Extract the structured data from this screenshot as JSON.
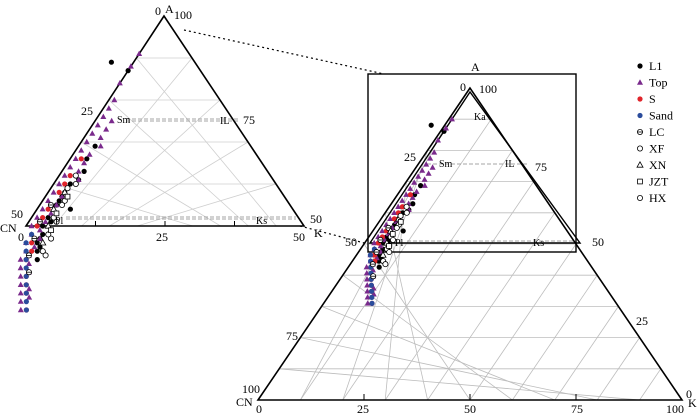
{
  "chart_data": {
    "type": "scatter",
    "title": "",
    "vertex_labels": {
      "apex": "A",
      "left": "CN",
      "right": "K"
    },
    "mineral_labels": {
      "sm": "Sm",
      "il": "IL",
      "pl": "Pl",
      "ks": "Ks",
      "ka": "Ka"
    },
    "full_diagram": {
      "left_ticks": [
        "100",
        "75",
        "50",
        "25",
        "0"
      ],
      "bottom_ticks": [
        "0",
        "25",
        "50",
        "75",
        "100"
      ],
      "right_ticks": [
        "0",
        "25",
        "50"
      ],
      "inset_ticks": {
        "apex_left": "0",
        "apex_right": "100",
        "left_25": "25",
        "right_75": "75",
        "left_50": "50",
        "right_50": "50"
      }
    },
    "enlarged_diagram": {
      "apex_left": "0",
      "apex_right": "100",
      "left_25": "25",
      "right_75": "75",
      "left_50": "50",
      "right_50": "50",
      "bottom_ticks": [
        "0",
        "25",
        "50"
      ]
    },
    "legend": [
      {
        "name": "L1",
        "marker": "circle-filled",
        "color": "#000000"
      },
      {
        "name": "Top",
        "marker": "triangle-filled",
        "color": "#7a2a8c"
      },
      {
        "name": "S",
        "marker": "circle-filled",
        "color": "#e0242a"
      },
      {
        "name": "Sand",
        "marker": "circle-filled",
        "color": "#2b4c9c"
      },
      {
        "name": "LC",
        "marker": "circle-crossed",
        "color": "#000000"
      },
      {
        "name": "XF",
        "marker": "circle-open",
        "color": "#000000"
      },
      {
        "name": "XN",
        "marker": "triangle-open",
        "color": "#000000"
      },
      {
        "name": "JZT",
        "marker": "square-open",
        "color": "#000000"
      },
      {
        "name": "HX",
        "marker": "circle-open",
        "color": "#000000"
      }
    ],
    "series": [
      {
        "name": "L1",
        "points": [
          [
            87,
            13
          ],
          [
            89,
            15
          ],
          [
            69,
            28
          ],
          [
            66,
            31
          ],
          [
            63,
            33
          ],
          [
            61,
            35
          ],
          [
            57,
            40
          ],
          [
            55,
            42
          ],
          [
            54,
            40
          ],
          [
            52,
            45
          ],
          [
            50,
            47
          ],
          [
            48,
            48
          ],
          [
            46,
            50
          ],
          [
            44,
            51
          ],
          [
            42,
            52
          ],
          [
            60,
            37
          ],
          [
            56,
            41
          ],
          [
            51,
            45
          ],
          [
            47,
            49
          ],
          [
            45,
            50
          ],
          [
            58,
            39
          ],
          [
            53,
            43
          ]
        ]
      },
      {
        "name": "Top",
        "points": [
          [
            91,
            9
          ],
          [
            88,
            12
          ],
          [
            84,
            16
          ],
          [
            80,
            19
          ],
          [
            78,
            21
          ],
          [
            76,
            23
          ],
          [
            74,
            25
          ],
          [
            72,
            27
          ],
          [
            70,
            29
          ],
          [
            68,
            31
          ],
          [
            66,
            33
          ],
          [
            64,
            35
          ],
          [
            62,
            37
          ],
          [
            60,
            39
          ],
          [
            58,
            41
          ],
          [
            56,
            43
          ],
          [
            54,
            45
          ],
          [
            52,
            47
          ],
          [
            50,
            49
          ],
          [
            48,
            50
          ],
          [
            46,
            52
          ],
          [
            44,
            53
          ],
          [
            42,
            55
          ],
          [
            40,
            56
          ],
          [
            38,
            57
          ],
          [
            36,
            58
          ],
          [
            34,
            59
          ],
          [
            32,
            60
          ],
          [
            30,
            61
          ],
          [
            75,
            22
          ],
          [
            71,
            26
          ],
          [
            67,
            30
          ],
          [
            63,
            34
          ],
          [
            59,
            38
          ],
          [
            55,
            42
          ],
          [
            51,
            46
          ],
          [
            47,
            49
          ],
          [
            43,
            53
          ],
          [
            39,
            55
          ],
          [
            35,
            57
          ],
          [
            73,
            24
          ],
          [
            65,
            32
          ],
          [
            57,
            40
          ],
          [
            49,
            48
          ],
          [
            41,
            54
          ],
          [
            33,
            58
          ],
          [
            69,
            27
          ],
          [
            61,
            35
          ],
          [
            53,
            44
          ],
          [
            45,
            51
          ]
        ]
      },
      {
        "name": "S",
        "points": [
          [
            66,
            32
          ],
          [
            62,
            36
          ],
          [
            58,
            40
          ],
          [
            54,
            44
          ],
          [
            50,
            48
          ],
          [
            46,
            51
          ],
          [
            42,
            54
          ],
          [
            38,
            56
          ],
          [
            34,
            58
          ],
          [
            30,
            60
          ],
          [
            60,
            38
          ],
          [
            52,
            46
          ],
          [
            44,
            52
          ],
          [
            36,
            57
          ]
        ]
      },
      {
        "name": "Sand",
        "points": [
          [
            48,
            50
          ],
          [
            44,
            53
          ],
          [
            40,
            55
          ],
          [
            36,
            57
          ],
          [
            32,
            59
          ],
          [
            30,
            60
          ],
          [
            46,
            52
          ],
          [
            42,
            54
          ],
          [
            38,
            56
          ],
          [
            34,
            58
          ]
        ]
      },
      {
        "name": "LC",
        "points": [
          [
            55,
            43
          ],
          [
            51,
            47
          ],
          [
            47,
            50
          ],
          [
            43,
            53
          ],
          [
            39,
            55
          ]
        ]
      },
      {
        "name": "XF",
        "points": [
          [
            60,
            36
          ],
          [
            56,
            40
          ],
          [
            52,
            44
          ],
          [
            48,
            47
          ],
          [
            44,
            50
          ]
        ]
      },
      {
        "name": "XN",
        "points": [
          [
            58,
            39
          ],
          [
            54,
            43
          ],
          [
            50,
            46
          ],
          [
            46,
            49
          ]
        ]
      },
      {
        "name": "JZT",
        "points": [
          [
            57,
            39
          ],
          [
            53,
            43
          ],
          [
            49,
            46
          ]
        ]
      },
      {
        "name": "HX",
        "points": [
          [
            62,
            35
          ],
          [
            59,
            38
          ],
          [
            55,
            41
          ],
          [
            51,
            44
          ],
          [
            47,
            47
          ],
          [
            43,
            50
          ]
        ]
      }
    ]
  }
}
